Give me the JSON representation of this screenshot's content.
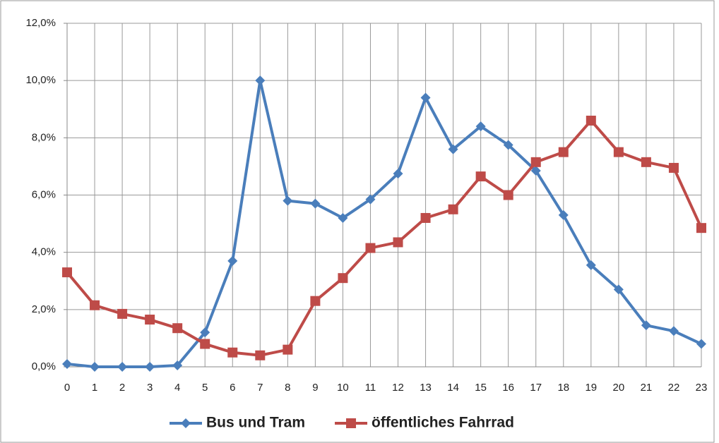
{
  "chart_data": {
    "type": "line",
    "categories": [
      "0",
      "1",
      "2",
      "3",
      "4",
      "5",
      "6",
      "7",
      "8",
      "9",
      "10",
      "11",
      "12",
      "13",
      "14",
      "15",
      "16",
      "17",
      "18",
      "19",
      "20",
      "21",
      "22",
      "23"
    ],
    "series": [
      {
        "name": "Bus und Tram",
        "color": "#4a7ebb",
        "marker": "diamond",
        "values": [
          0.1,
          0,
          0,
          0,
          0.05,
          1.2,
          3.7,
          10.0,
          5.8,
          5.7,
          5.2,
          5.85,
          6.75,
          9.4,
          7.6,
          8.4,
          7.75,
          6.85,
          5.3,
          3.55,
          2.7,
          1.45,
          1.25,
          0.8
        ]
      },
      {
        "name": "öffentliches Fahrrad",
        "color": "#be4b48",
        "marker": "square",
        "values": [
          3.3,
          2.15,
          1.85,
          1.65,
          1.35,
          0.8,
          0.5,
          0.4,
          0.6,
          2.3,
          3.1,
          4.15,
          4.35,
          5.2,
          5.5,
          6.65,
          6.0,
          7.15,
          7.5,
          8.6,
          7.5,
          7.15,
          6.95,
          4.85
        ]
      }
    ],
    "ylim": [
      0,
      12
    ],
    "yticks": [
      {
        "value": 0,
        "label": "0,0%"
      },
      {
        "value": 2,
        "label": "2,0%"
      },
      {
        "value": 4,
        "label": "4,0%"
      },
      {
        "value": 6,
        "label": "6,0%"
      },
      {
        "value": 8,
        "label": "8,0%"
      },
      {
        "value": 10,
        "label": "10,0%"
      },
      {
        "value": 12,
        "label": "12,0%"
      }
    ],
    "grid": true,
    "legend": "bottom"
  }
}
